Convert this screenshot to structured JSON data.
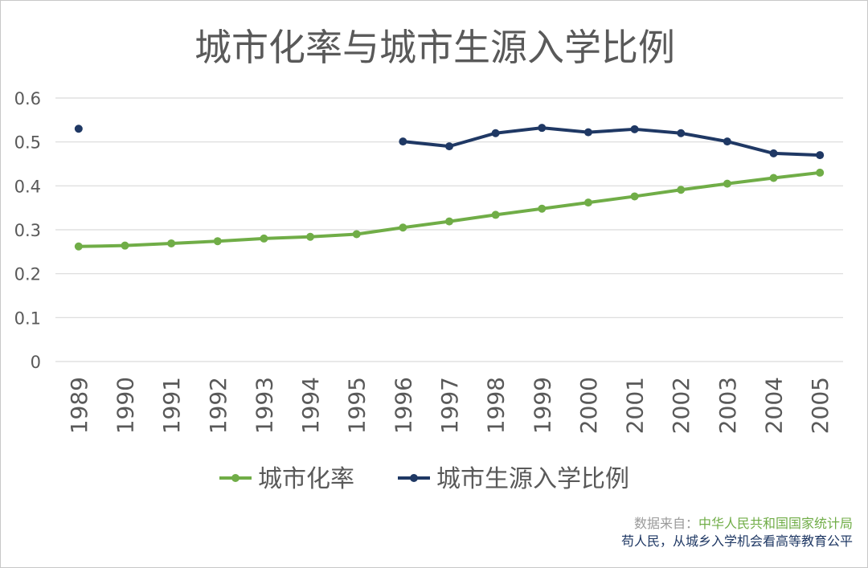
{
  "chart_data": {
    "type": "line",
    "title": "城市化率与城市生源入学比例",
    "xlabel": "",
    "ylabel": "",
    "ylim": [
      0,
      0.6
    ],
    "yticks": [
      "0",
      "0.1",
      "0.2",
      "0.3",
      "0.4",
      "0.5",
      "0.6"
    ],
    "grid": true,
    "legend_position": "bottom",
    "categories": [
      "1989",
      "1990",
      "1991",
      "1992",
      "1993",
      "1994",
      "1995",
      "1996",
      "1997",
      "1998",
      "1999",
      "2000",
      "2001",
      "2002",
      "2003",
      "2004",
      "2005"
    ],
    "series": [
      {
        "name": "城市化率",
        "color": "#70ad47",
        "values": [
          0.262,
          0.264,
          0.269,
          0.274,
          0.28,
          0.284,
          0.29,
          0.305,
          0.319,
          0.334,
          0.348,
          0.362,
          0.376,
          0.391,
          0.405,
          0.418,
          0.43
        ]
      },
      {
        "name": "城市生源入学比例",
        "color": "#1f3864",
        "values": [
          0.53,
          null,
          null,
          null,
          null,
          null,
          null,
          0.501,
          0.49,
          0.52,
          0.532,
          0.522,
          0.529,
          0.52,
          0.501,
          0.474,
          0.47
        ]
      }
    ]
  },
  "source": {
    "prefix": "数据来自：",
    "org": "中华人民共和国国家统计局",
    "reference": "苟人民，从城乡入学机会看高等教育公平"
  }
}
